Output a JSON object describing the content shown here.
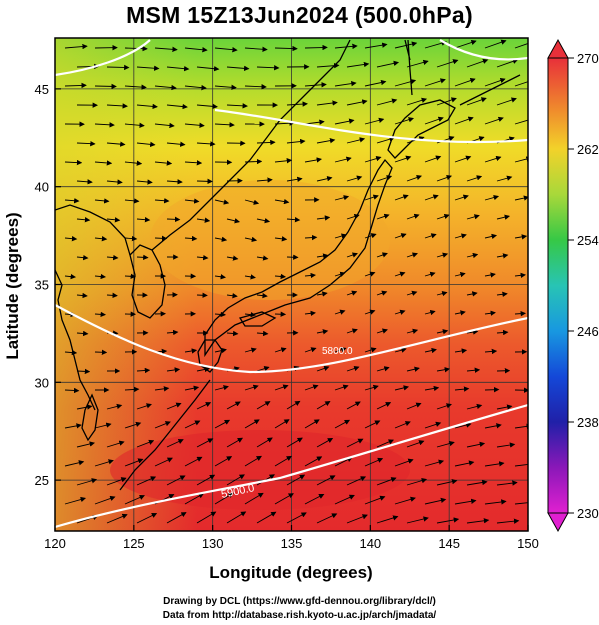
{
  "figure": {
    "title": "MSM 15Z13Jun2024 (500.0hPa)",
    "xlabel": "Longitude (degrees)",
    "ylabel": "Latitude  (degrees)",
    "credit_line1": "Drawing by DCL (https://www.gfd-dennou.org/library/dcl/)",
    "credit_line2": "Data from http://database.rish.kyoto-u.ac.jp/arch/jmadata/"
  },
  "map": {
    "lon_range": [
      120,
      150
    ],
    "lat_range": [
      22.4,
      47.6
    ],
    "lon_ticks": [
      120,
      125,
      130,
      135,
      140,
      145,
      150
    ],
    "lat_ticks": [
      25,
      30,
      35,
      40,
      45
    ],
    "gridlines": true
  },
  "colorbar": {
    "variable": "temperature",
    "range": [
      230,
      270
    ],
    "tick_labels": [
      "270",
      "262",
      "254",
      "246",
      "238",
      "230"
    ],
    "tick_values": [
      270,
      262,
      254,
      246,
      238,
      230
    ],
    "colors": [
      "#e8303a",
      "#f0902c",
      "#f2d22a",
      "#a8d83a",
      "#36c846",
      "#28c4b4",
      "#1898e0",
      "#1448d8",
      "#2020a8",
      "#8a18b8",
      "#e020d0"
    ]
  },
  "contours": {
    "variable": "geopotential height",
    "labeled_values": [
      "5900.0",
      "5800.0"
    ],
    "color": "#ffffff"
  },
  "vectors": {
    "variable": "wind",
    "color": "#000000"
  }
}
